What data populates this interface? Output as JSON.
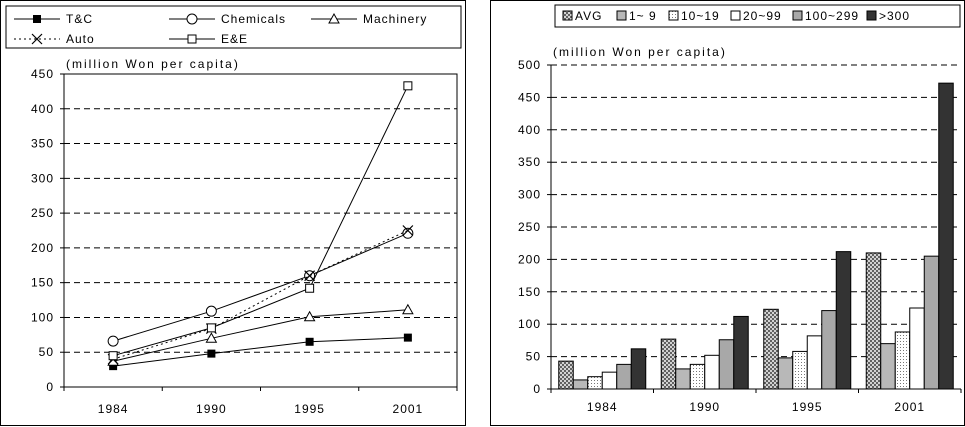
{
  "chart_data": [
    {
      "type": "line",
      "ylabel": "(million Won per capita)",
      "categories": [
        "1984",
        "1990",
        "1995",
        "2001"
      ],
      "ylim": [
        0,
        450
      ],
      "yticks": [
        0,
        50,
        100,
        150,
        200,
        250,
        300,
        350,
        400,
        450
      ],
      "grid": "horizontal dashed",
      "legend_position": "top",
      "series": [
        {
          "name": "T&C",
          "marker": "filled-square",
          "line": "solid",
          "values": [
            30,
            48,
            65,
            71
          ]
        },
        {
          "name": "Chemicals",
          "marker": "open-circle",
          "line": "solid",
          "values": [
            66,
            109,
            160,
            221
          ]
        },
        {
          "name": "Machinery",
          "marker": "open-triangle",
          "line": "solid",
          "values": [
            37,
            70,
            101,
            111
          ]
        },
        {
          "name": "Auto",
          "marker": "cross",
          "line": "dotted",
          "values": [
            40,
            84,
            160,
            225
          ]
        },
        {
          "name": "E&E",
          "marker": "open-square",
          "line": "solid",
          "values": [
            45,
            85,
            142,
            433
          ]
        }
      ]
    },
    {
      "type": "bar",
      "ylabel": "(million Won per capita)",
      "categories": [
        "1984",
        "1990",
        "1995",
        "2001"
      ],
      "ylim": [
        0,
        500
      ],
      "yticks": [
        0,
        50,
        100,
        150,
        200,
        250,
        300,
        350,
        400,
        450,
        500
      ],
      "grid": "horizontal dashed",
      "legend_position": "top",
      "series": [
        {
          "name": "AVG",
          "fill": "crosshatch",
          "values": [
            43,
            77,
            123,
            210
          ]
        },
        {
          "name": "1~ 9",
          "fill": "#b8b8b8",
          "values": [
            14,
            31,
            48,
            70
          ]
        },
        {
          "name": "10~19",
          "fill": "dotted",
          "values": [
            19,
            38,
            58,
            88
          ]
        },
        {
          "name": "20~99",
          "fill": "#ffffff",
          "values": [
            26,
            52,
            82,
            125
          ]
        },
        {
          "name": "100~299",
          "fill": "#a8a8a8",
          "values": [
            38,
            76,
            121,
            205
          ]
        },
        {
          "name": ">300",
          "fill": "#333333",
          "values": [
            62,
            112,
            212,
            472
          ]
        }
      ]
    }
  ]
}
